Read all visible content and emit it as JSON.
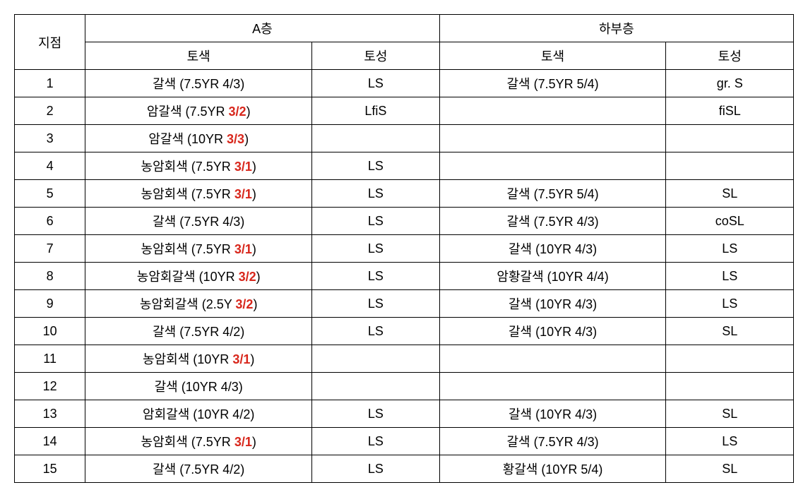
{
  "header": {
    "rowhead": "지점",
    "groupA": "A층",
    "groupB": "하부층",
    "sub_color": "토색",
    "sub_texture": "토성"
  },
  "colors": {
    "text": "#000000",
    "highlight": "#d8271c",
    "border": "#000000",
    "background": "#ffffff"
  },
  "fontsize": 18,
  "rows": [
    {
      "idx": "1",
      "a_color_pre": "갈색 (7.5YR ",
      "a_color_hl": "",
      "a_color_post": "4/3)",
      "a_tex": "LS",
      "b_color_pre": "갈색 (7.5YR 5/4)",
      "b_color_hl": "",
      "b_color_post": "",
      "b_tex": "gr. S"
    },
    {
      "idx": "2",
      "a_color_pre": "암갈색 (7.5YR ",
      "a_color_hl": "3/2",
      "a_color_post": ")",
      "a_tex": "LfiS",
      "b_color_pre": "",
      "b_color_hl": "",
      "b_color_post": "",
      "b_tex": "fiSL"
    },
    {
      "idx": "3",
      "a_color_pre": "암갈색 (10YR ",
      "a_color_hl": "3/3",
      "a_color_post": ")",
      "a_tex": "",
      "b_color_pre": "",
      "b_color_hl": "",
      "b_color_post": "",
      "b_tex": ""
    },
    {
      "idx": "4",
      "a_color_pre": "농암회색 (7.5YR ",
      "a_color_hl": "3/1",
      "a_color_post": ")",
      "a_tex": "LS",
      "b_color_pre": "",
      "b_color_hl": "",
      "b_color_post": "",
      "b_tex": ""
    },
    {
      "idx": "5",
      "a_color_pre": "농암회색 (7.5YR ",
      "a_color_hl": "3/1",
      "a_color_post": ")",
      "a_tex": "LS",
      "b_color_pre": "갈색 (7.5YR 5/4)",
      "b_color_hl": "",
      "b_color_post": "",
      "b_tex": "SL"
    },
    {
      "idx": "6",
      "a_color_pre": "갈색 (7.5YR 4/3)",
      "a_color_hl": "",
      "a_color_post": "",
      "a_tex": "LS",
      "b_color_pre": "갈색 (7.5YR 4/3)",
      "b_color_hl": "",
      "b_color_post": "",
      "b_tex": "coSL"
    },
    {
      "idx": "7",
      "a_color_pre": "농암회색 (7.5YR ",
      "a_color_hl": "3/1",
      "a_color_post": ")",
      "a_tex": "LS",
      "b_color_pre": "갈색 (10YR 4/3)",
      "b_color_hl": "",
      "b_color_post": "",
      "b_tex": "LS"
    },
    {
      "idx": "8",
      "a_color_pre": "농암회갈색 (10YR ",
      "a_color_hl": "3/2",
      "a_color_post": ")",
      "a_tex": "LS",
      "b_color_pre": "암황갈색 (10YR 4/4)",
      "b_color_hl": "",
      "b_color_post": "",
      "b_tex": "LS"
    },
    {
      "idx": "9",
      "a_color_pre": "농암회갈색 (2.5Y ",
      "a_color_hl": "3/2",
      "a_color_post": ")",
      "a_tex": "LS",
      "b_color_pre": "갈색 (10YR 4/3)",
      "b_color_hl": "",
      "b_color_post": "",
      "b_tex": "LS"
    },
    {
      "idx": "10",
      "a_color_pre": "갈색 (7.5YR 4/2)",
      "a_color_hl": "",
      "a_color_post": "",
      "a_tex": "LS",
      "b_color_pre": "갈색 (10YR 4/3)",
      "b_color_hl": "",
      "b_color_post": "",
      "b_tex": "SL"
    },
    {
      "idx": "11",
      "a_color_pre": "농암회색 (10YR ",
      "a_color_hl": "3/1",
      "a_color_post": ")",
      "a_tex": "",
      "b_color_pre": "",
      "b_color_hl": "",
      "b_color_post": "",
      "b_tex": ""
    },
    {
      "idx": "12",
      "a_color_pre": "갈색 (10YR 4/3)",
      "a_color_hl": "",
      "a_color_post": "",
      "a_tex": "",
      "b_color_pre": "",
      "b_color_hl": "",
      "b_color_post": "",
      "b_tex": ""
    },
    {
      "idx": "13",
      "a_color_pre": "암회갈색 (10YR 4/2)",
      "a_color_hl": "",
      "a_color_post": "",
      "a_tex": "LS",
      "b_color_pre": "갈색 (10YR 4/3)",
      "b_color_hl": "",
      "b_color_post": "",
      "b_tex": "SL"
    },
    {
      "idx": "14",
      "a_color_pre": "농암회색 (7.5YR ",
      "a_color_hl": "3/1",
      "a_color_post": ")",
      "a_tex": "LS",
      "b_color_pre": "갈색 (7.5YR 4/3)",
      "b_color_hl": "",
      "b_color_post": "",
      "b_tex": "LS"
    },
    {
      "idx": "15",
      "a_color_pre": "갈색 (7.5YR 4/2)",
      "a_color_hl": "",
      "a_color_post": "",
      "a_tex": "LS",
      "b_color_pre": "황갈색 (10YR 5/4)",
      "b_color_hl": "",
      "b_color_post": "",
      "b_tex": "SL"
    }
  ]
}
